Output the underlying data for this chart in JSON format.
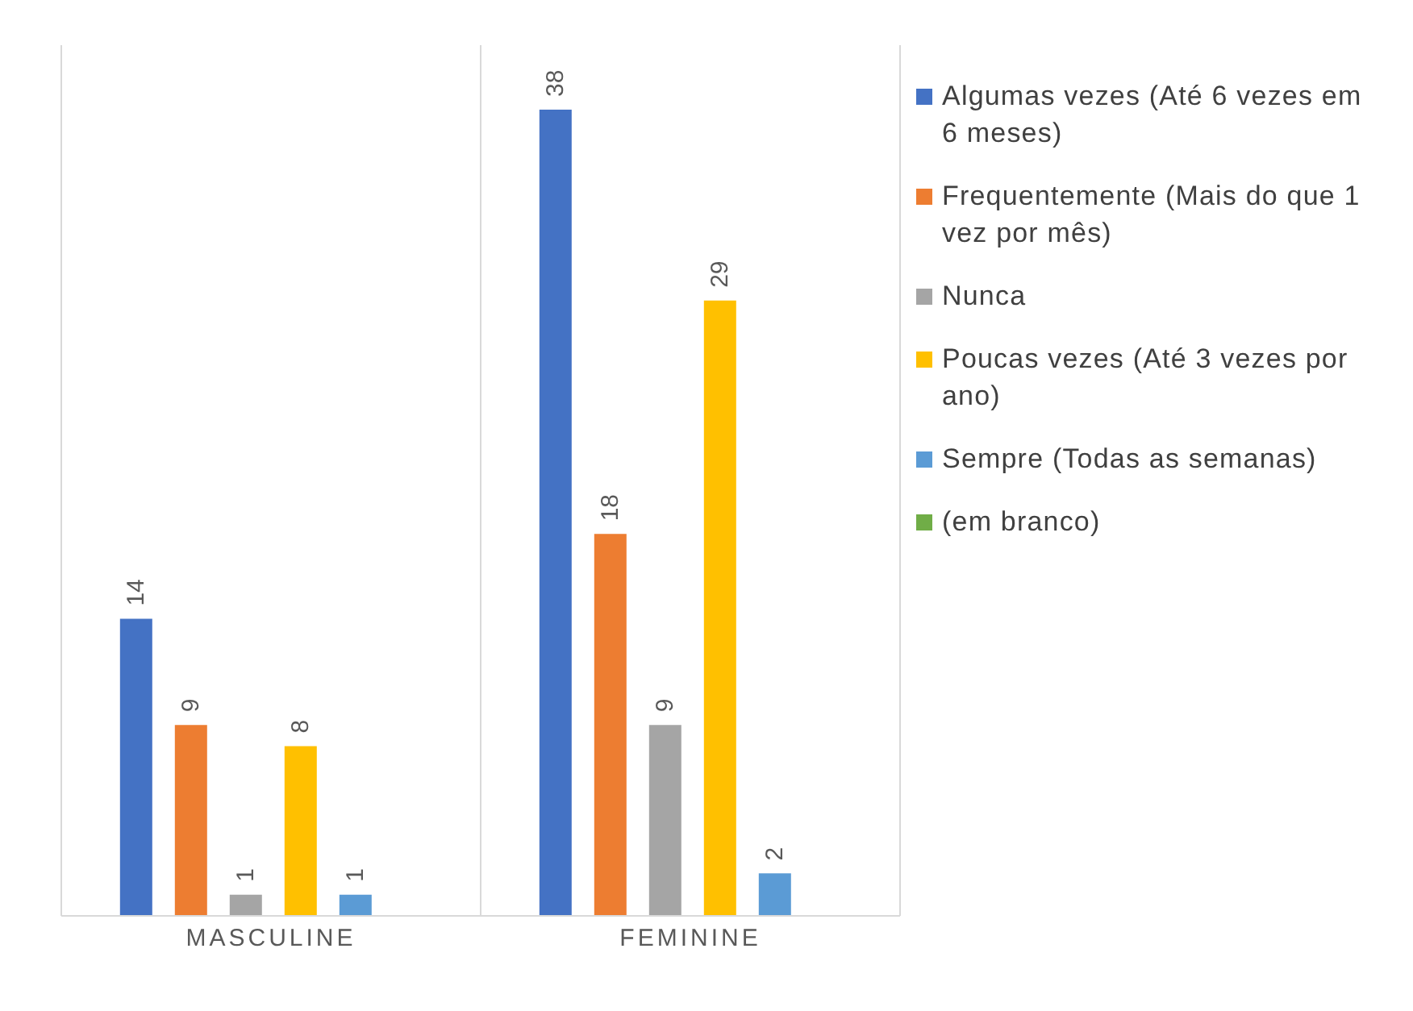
{
  "chart_data": {
    "type": "bar",
    "categories": [
      "MASCULINE",
      "FEMININE"
    ],
    "series": [
      {
        "name": "Algumas vezes (Até 6 vezes em 6 meses)",
        "color": "#4472c4",
        "values": [
          14,
          38
        ]
      },
      {
        "name": "Frequentemente (Mais do que 1 vez por mês)",
        "color": "#ed7d31",
        "values": [
          9,
          18
        ]
      },
      {
        "name": "Nunca",
        "color": "#a5a5a5",
        "values": [
          1,
          9
        ]
      },
      {
        "name": "Poucas vezes (Até 3 vezes por ano)",
        "color": "#ffc000",
        "values": [
          8,
          29
        ]
      },
      {
        "name": "Sempre (Todas as semanas)",
        "color": "#5b9bd5",
        "values": [
          1,
          2
        ]
      },
      {
        "name": "(em branco)",
        "color": "#70ad47",
        "values": [
          null,
          null
        ]
      }
    ],
    "data_labels": true,
    "grid": "x",
    "legend": "right"
  }
}
